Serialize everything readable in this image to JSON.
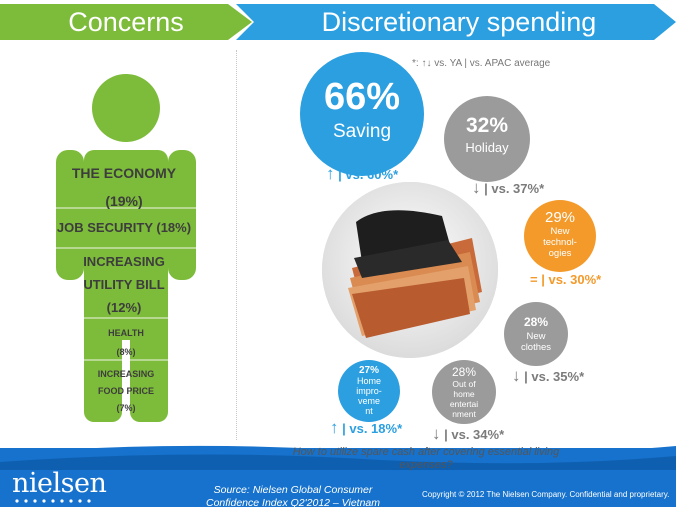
{
  "header": {
    "left_title": "Concerns",
    "right_title": "Discretionary spending"
  },
  "legend_note": "*: ↑↓ vs. YA | vs. APAC average",
  "concerns": [
    {
      "label": "THE ECONOMY",
      "value": "(19%)"
    },
    {
      "label": "JOB SECURITY (18%)"
    },
    {
      "label_line1": "INCREASING",
      "label_line2": "UTILITY BILL",
      "value": "(12%)"
    },
    {
      "label": "HEALTH",
      "value": "(8%)"
    },
    {
      "label_line1": "INCREASING",
      "label_line2": "FOOD PRICE",
      "value": "(7%)"
    }
  ],
  "spending": [
    {
      "pct": "66%",
      "label": "Saving",
      "arrow": "↑",
      "cmp": "| vs. 60%*"
    },
    {
      "pct": "32%",
      "label": "Holiday",
      "arrow": "↓",
      "cmp": "| vs. 37%*"
    },
    {
      "pct": "29%",
      "label_lines": [
        "New",
        "technol-",
        "ogies"
      ],
      "arrow": "=",
      "cmp": "| vs. 30%*"
    },
    {
      "pct": "28%",
      "label_lines": [
        "New",
        "clothes"
      ],
      "arrow": "↓",
      "cmp": "| vs. 35%*"
    },
    {
      "pct": "28%",
      "label_lines": [
        "Out of",
        "home",
        "entertai",
        "nment"
      ],
      "arrow": "↓",
      "cmp": "| vs. 34%*"
    },
    {
      "pct": "27%",
      "label_lines": [
        "Home",
        "impro-",
        "veme",
        "nt"
      ],
      "arrow": "↑",
      "cmp": "| vs. 18%*"
    }
  ],
  "question": "How to utilize spare cash after covering essential living expenses?",
  "footer": {
    "logo": "nielsen",
    "source_line1": "Source: Nielsen Global Consumer",
    "source_line2": "Confidence Index  Q2'2012 – Vietnam",
    "copyright": "Copyright © 2012 The Nielsen Company. Confidential and proprietary."
  },
  "colors": {
    "green": "#7dbb3a",
    "blue": "#2b9fe0",
    "orange": "#f39a2b",
    "gray": "#9b9b9b",
    "footer_blue": "#1672cc"
  }
}
